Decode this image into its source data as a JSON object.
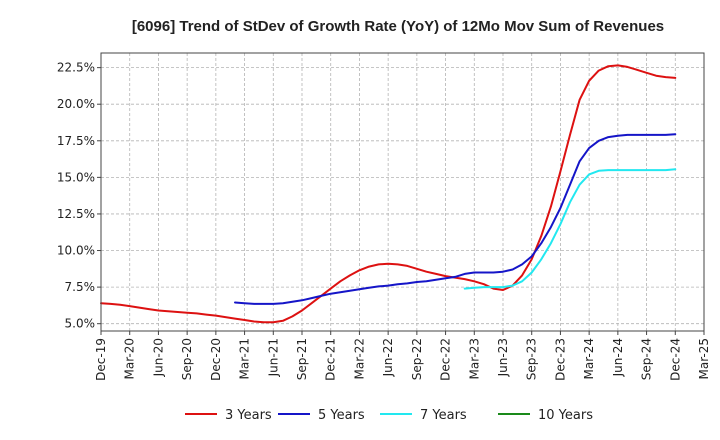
{
  "chart_data": {
    "type": "line",
    "title": "[6096]  Trend of StDev of Growth Rate (YoY) of 12Mo Mov Sum of Revenues",
    "xlabel": "",
    "ylabel": "",
    "ylim": [
      4.5,
      23.5
    ],
    "y_ticks": [
      5.0,
      7.5,
      10.0,
      12.5,
      15.0,
      17.5,
      20.0,
      22.5
    ],
    "y_tick_labels": [
      "5.0%",
      "7.5%",
      "10.0%",
      "12.5%",
      "15.0%",
      "17.5%",
      "20.0%",
      "22.5%"
    ],
    "x_tick_labels": [
      "Dec-19",
      "Mar-20",
      "Jun-20",
      "Sep-20",
      "Dec-20",
      "Mar-21",
      "Jun-21",
      "Sep-21",
      "Dec-21",
      "Mar-22",
      "Jun-22",
      "Sep-22",
      "Dec-22",
      "Mar-23",
      "Jun-23",
      "Sep-23",
      "Dec-23",
      "Mar-24",
      "Jun-24",
      "Sep-24",
      "Dec-24",
      "Mar-25"
    ],
    "x_range_months": [
      0,
      63
    ],
    "grid": true,
    "legend_position": "bottom",
    "series": [
      {
        "name": "3 Years",
        "color": "#dd1111",
        "x": [
          0,
          1,
          2,
          3,
          4,
          5,
          6,
          7,
          8,
          9,
          10,
          11,
          12,
          13,
          14,
          15,
          16,
          17,
          18,
          19,
          20,
          21,
          22,
          23,
          24,
          25,
          26,
          27,
          28,
          29,
          30,
          31,
          32,
          33,
          34,
          35,
          36,
          37,
          38,
          39,
          40,
          41,
          42,
          43,
          44,
          45,
          46,
          47,
          48,
          49,
          50,
          51,
          52,
          53,
          54,
          55,
          56,
          57,
          58,
          59,
          60
        ],
        "values": [
          6.4,
          6.35,
          6.3,
          6.2,
          6.1,
          6.0,
          5.9,
          5.85,
          5.8,
          5.75,
          5.7,
          5.62,
          5.55,
          5.45,
          5.35,
          5.25,
          5.15,
          5.1,
          5.1,
          5.2,
          5.5,
          5.9,
          6.4,
          6.9,
          7.4,
          7.9,
          8.3,
          8.65,
          8.9,
          9.05,
          9.1,
          9.05,
          8.95,
          8.75,
          8.55,
          8.4,
          8.25,
          8.15,
          8.05,
          7.9,
          7.7,
          7.4,
          7.3,
          7.6,
          8.3,
          9.4,
          11.0,
          13.0,
          15.4,
          17.9,
          20.3,
          21.6,
          22.3,
          22.6,
          22.65,
          22.55,
          22.35,
          22.15,
          21.95,
          21.85,
          21.8
        ]
      },
      {
        "name": "5 Years",
        "color": "#1515c8",
        "x": [
          14,
          15,
          16,
          17,
          18,
          19,
          20,
          21,
          22,
          23,
          24,
          25,
          26,
          27,
          28,
          29,
          30,
          31,
          32,
          33,
          34,
          35,
          36,
          37,
          38,
          39,
          40,
          41,
          42,
          43,
          44,
          45,
          46,
          47,
          48,
          49,
          50,
          51,
          52,
          53,
          54,
          55,
          56,
          57,
          58,
          59,
          60
        ],
        "values": [
          6.45,
          6.4,
          6.35,
          6.35,
          6.35,
          6.4,
          6.5,
          6.6,
          6.75,
          6.9,
          7.05,
          7.15,
          7.25,
          7.35,
          7.45,
          7.55,
          7.6,
          7.7,
          7.75,
          7.85,
          7.9,
          8.0,
          8.1,
          8.2,
          8.4,
          8.5,
          8.5,
          8.5,
          8.55,
          8.7,
          9.05,
          9.6,
          10.5,
          11.6,
          12.9,
          14.5,
          16.1,
          17.0,
          17.5,
          17.75,
          17.85,
          17.9,
          17.9,
          17.9,
          17.9,
          17.9,
          17.95
        ]
      },
      {
        "name": "7 Years",
        "color": "#22e8f0",
        "x": [
          38,
          39,
          40,
          41,
          42,
          43,
          44,
          45,
          46,
          47,
          48,
          49,
          50,
          51,
          52,
          53,
          54,
          55,
          56,
          57,
          58,
          59,
          60
        ],
        "values": [
          7.4,
          7.45,
          7.5,
          7.5,
          7.5,
          7.6,
          7.9,
          8.5,
          9.4,
          10.5,
          11.8,
          13.3,
          14.5,
          15.2,
          15.45,
          15.5,
          15.5,
          15.5,
          15.5,
          15.5,
          15.5,
          15.5,
          15.55
        ]
      },
      {
        "name": "10 Years",
        "color": "#1a8a1a",
        "x": [],
        "values": []
      }
    ]
  }
}
